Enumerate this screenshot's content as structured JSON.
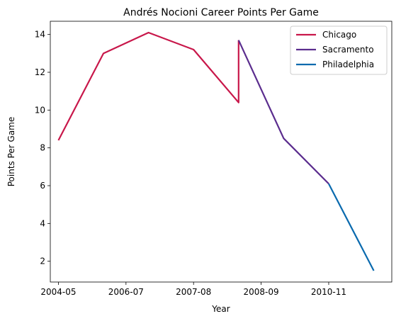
{
  "chart_data": {
    "type": "line",
    "title": "Andrés Nocioni Career Points Per Game",
    "xlabel": "Year",
    "ylabel": "Points Per Game",
    "x_ticks": [
      "2004-05",
      "2006-07",
      "2007-08",
      "2008-09",
      "2010-11"
    ],
    "x_tick_positions": [
      0,
      1.5,
      3.0,
      4.5,
      6.0
    ],
    "y_ticks": [
      2,
      4,
      6,
      8,
      10,
      12,
      14
    ],
    "xlim": [
      -0.18,
      7.4
    ],
    "ylim": [
      0.9,
      14.7
    ],
    "grid": false,
    "legend_position": "top-right",
    "series": [
      {
        "name": "Chicago",
        "color": "#c8174a",
        "x": [
          0,
          1,
          2,
          3,
          4,
          4
        ],
        "y": [
          8.4,
          13.0,
          14.1,
          13.2,
          10.4,
          13.7
        ]
      },
      {
        "name": "Sacramento",
        "color": "#5b2d8e",
        "x": [
          4,
          5,
          6
        ],
        "y": [
          13.7,
          8.5,
          6.1
        ]
      },
      {
        "name": "Philadelphia",
        "color": "#0a6aae",
        "x": [
          6,
          7
        ],
        "y": [
          6.1,
          1.5
        ]
      }
    ]
  }
}
